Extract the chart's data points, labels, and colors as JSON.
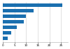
{
  "values": [
    25436,
    13174,
    9985,
    9049,
    5928,
    3458,
    1956
  ],
  "bar_color": "#1a6faf",
  "xlim": [
    0,
    28000
  ],
  "figsize": [
    1.0,
    0.71
  ],
  "dpi": 100,
  "xtick_fontsize": 3.0,
  "bar_height": 0.6,
  "background_color": "#ffffff",
  "grid_color": "#cccccc",
  "xticks": [
    0,
    5000,
    10000,
    15000,
    20000,
    25000
  ]
}
